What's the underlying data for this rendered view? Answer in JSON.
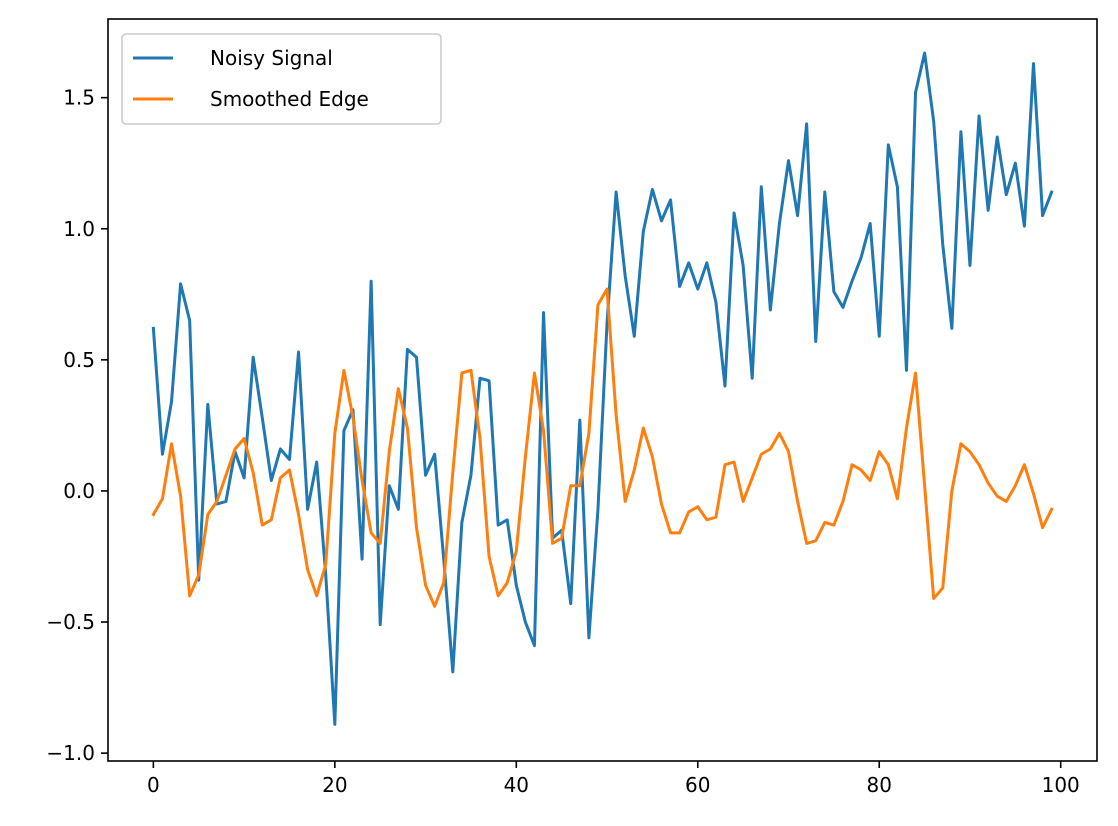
{
  "chart_data": {
    "type": "line",
    "title": "",
    "xlabel": "",
    "ylabel": "",
    "xlim": [
      -5,
      104
    ],
    "ylim": [
      -1.03,
      1.8
    ],
    "grid": false,
    "legend_position": "top-left",
    "x_ticks": [
      0,
      20,
      40,
      60,
      80,
      100
    ],
    "x_tick_labels": [
      "0",
      "20",
      "40",
      "60",
      "80",
      "100"
    ],
    "y_ticks": [
      -1.0,
      -0.5,
      0.0,
      0.5,
      1.0,
      1.5
    ],
    "y_tick_labels": [
      "−1.0",
      "−0.5",
      "0.0",
      "0.5",
      "1.0",
      "1.5"
    ],
    "x": [
      0,
      1,
      2,
      3,
      4,
      5,
      6,
      7,
      8,
      9,
      10,
      11,
      12,
      13,
      14,
      15,
      16,
      17,
      18,
      19,
      20,
      21,
      22,
      23,
      24,
      25,
      26,
      27,
      28,
      29,
      30,
      31,
      32,
      33,
      34,
      35,
      36,
      37,
      38,
      39,
      40,
      41,
      42,
      43,
      44,
      45,
      46,
      47,
      48,
      49,
      50,
      51,
      52,
      53,
      54,
      55,
      56,
      57,
      58,
      59,
      60,
      61,
      62,
      63,
      64,
      65,
      66,
      67,
      68,
      69,
      70,
      71,
      72,
      73,
      74,
      75,
      76,
      77,
      78,
      79,
      80,
      81,
      82,
      83,
      84,
      85,
      86,
      87,
      88,
      89,
      90,
      91,
      92,
      93,
      94,
      95,
      96,
      97,
      98,
      99
    ],
    "series": [
      {
        "name": "Noisy Signal",
        "color": "#1f77b4",
        "values": [
          0.62,
          0.14,
          0.34,
          0.79,
          0.65,
          -0.34,
          0.33,
          -0.05,
          -0.04,
          0.15,
          0.05,
          0.51,
          0.28,
          0.04,
          0.16,
          0.12,
          0.53,
          -0.07,
          0.11,
          -0.32,
          -0.89,
          0.23,
          0.31,
          -0.26,
          0.8,
          -0.51,
          0.02,
          -0.07,
          0.54,
          0.51,
          0.06,
          0.14,
          -0.26,
          -0.69,
          -0.12,
          0.06,
          0.43,
          0.42,
          -0.13,
          -0.11,
          -0.36,
          -0.5,
          -0.59,
          0.68,
          -0.18,
          -0.15,
          -0.43,
          0.27,
          -0.56,
          -0.07,
          0.64,
          1.14,
          0.82,
          0.59,
          0.99,
          1.15,
          1.03,
          1.11,
          0.78,
          0.87,
          0.77,
          0.87,
          0.72,
          0.4,
          1.06,
          0.86,
          0.43,
          1.16,
          0.69,
          1.02,
          1.26,
          1.05,
          1.4,
          0.57,
          1.14,
          0.76,
          0.7,
          0.8,
          0.89,
          1.02,
          0.59,
          1.32,
          1.16,
          0.46,
          1.52,
          1.67,
          1.41,
          0.94,
          0.62,
          1.37,
          0.86,
          1.43,
          1.07,
          1.35,
          1.13,
          1.25,
          1.01,
          1.63,
          1.05,
          1.14
        ]
      },
      {
        "name": "Smoothed Edge",
        "color": "#ff7f0e",
        "values": [
          -0.09,
          -0.03,
          0.18,
          -0.02,
          -0.4,
          -0.32,
          -0.09,
          -0.04,
          0.06,
          0.16,
          0.2,
          0.07,
          -0.13,
          -0.11,
          0.05,
          0.08,
          -0.09,
          -0.3,
          -0.4,
          -0.28,
          0.22,
          0.46,
          0.28,
          0.04,
          -0.16,
          -0.2,
          0.15,
          0.39,
          0.24,
          -0.14,
          -0.36,
          -0.44,
          -0.35,
          0.07,
          0.45,
          0.46,
          0.2,
          -0.25,
          -0.4,
          -0.35,
          -0.23,
          0.13,
          0.45,
          0.23,
          -0.2,
          -0.18,
          0.02,
          0.02,
          0.22,
          0.71,
          0.77,
          0.29,
          -0.04,
          0.08,
          0.24,
          0.13,
          -0.05,
          -0.16,
          -0.16,
          -0.08,
          -0.06,
          -0.11,
          -0.1,
          0.1,
          0.11,
          -0.04,
          0.05,
          0.14,
          0.16,
          0.22,
          0.15,
          -0.04,
          -0.2,
          -0.19,
          -0.12,
          -0.13,
          -0.04,
          0.1,
          0.08,
          0.04,
          0.15,
          0.1,
          -0.03,
          0.24,
          0.45,
          0.02,
          -0.41,
          -0.37,
          0.0,
          0.18,
          0.15,
          0.1,
          0.03,
          -0.02,
          -0.04,
          0.02,
          0.1,
          -0.01,
          -0.14,
          -0.07
        ]
      }
    ]
  }
}
